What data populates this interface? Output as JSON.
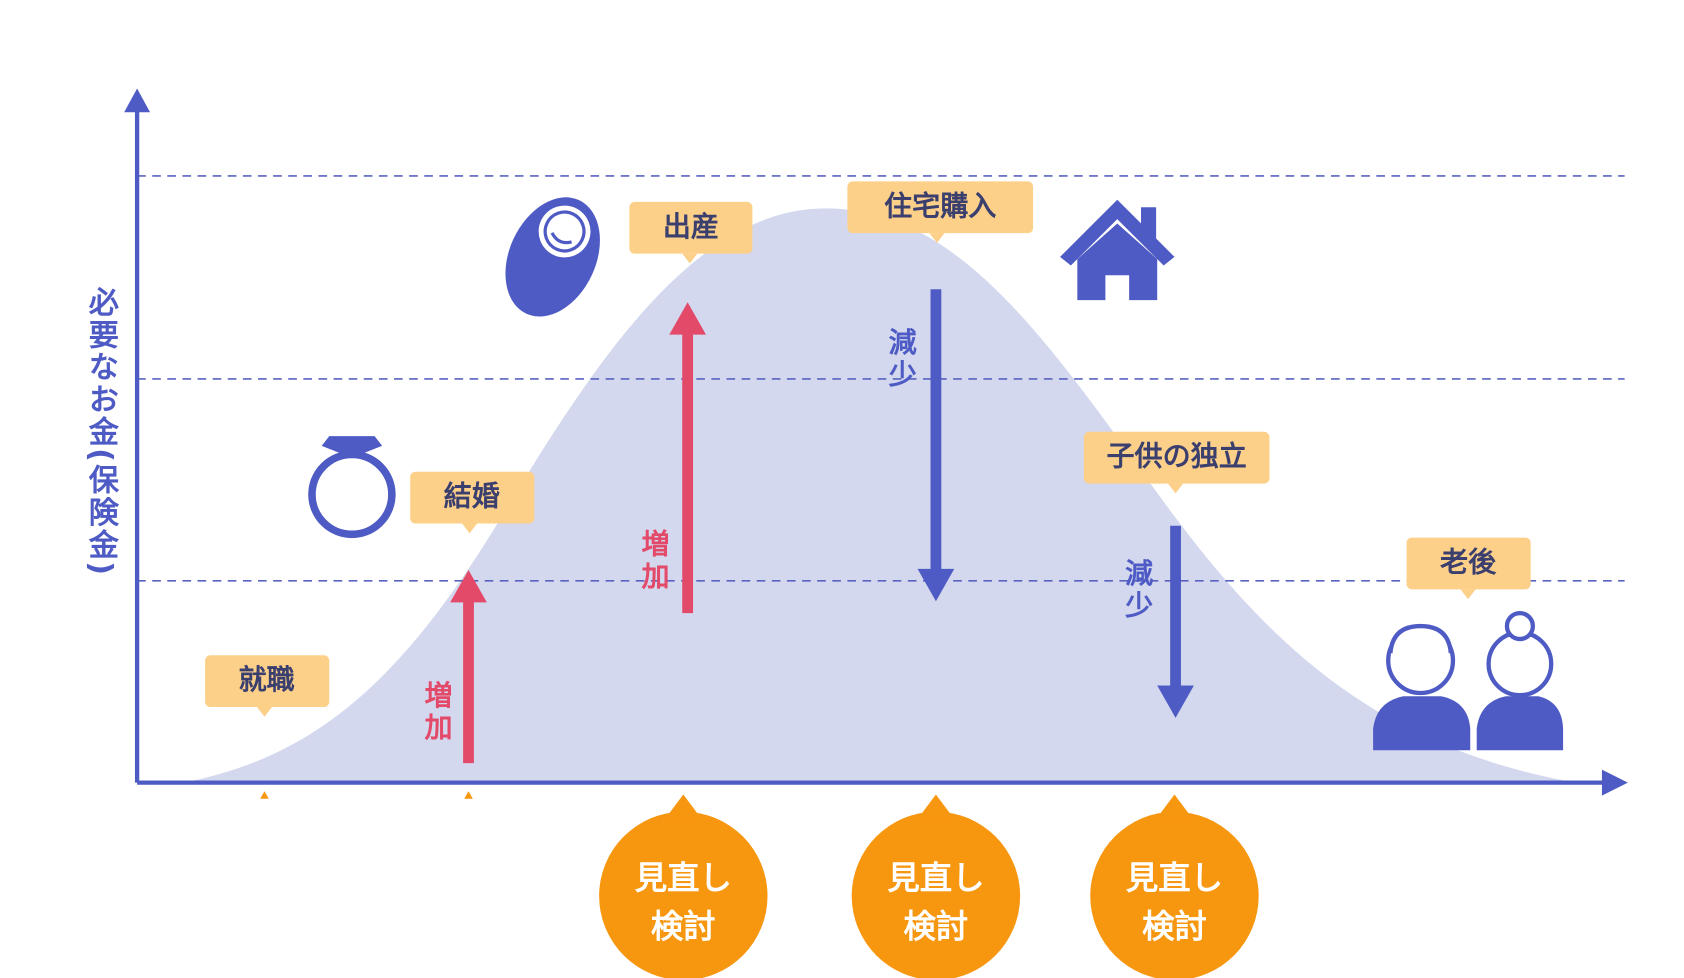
{
  "axis": {
    "y_label": "必要なお金(保険金)"
  },
  "events": [
    {
      "label": "就職"
    },
    {
      "label": "結婚"
    },
    {
      "label": "出産"
    },
    {
      "label": "住宅購入"
    },
    {
      "label": "子供の独立"
    },
    {
      "label": "老後"
    }
  ],
  "changes": [
    {
      "label": "増加"
    },
    {
      "label": "増加"
    },
    {
      "label": "減少"
    },
    {
      "label": "減少"
    }
  ],
  "reviews": [
    {
      "line1": "見直し",
      "line2": "検討"
    },
    {
      "line1": "見直し",
      "line2": "検討"
    },
    {
      "line1": "見直し",
      "line2": "検討"
    }
  ]
}
